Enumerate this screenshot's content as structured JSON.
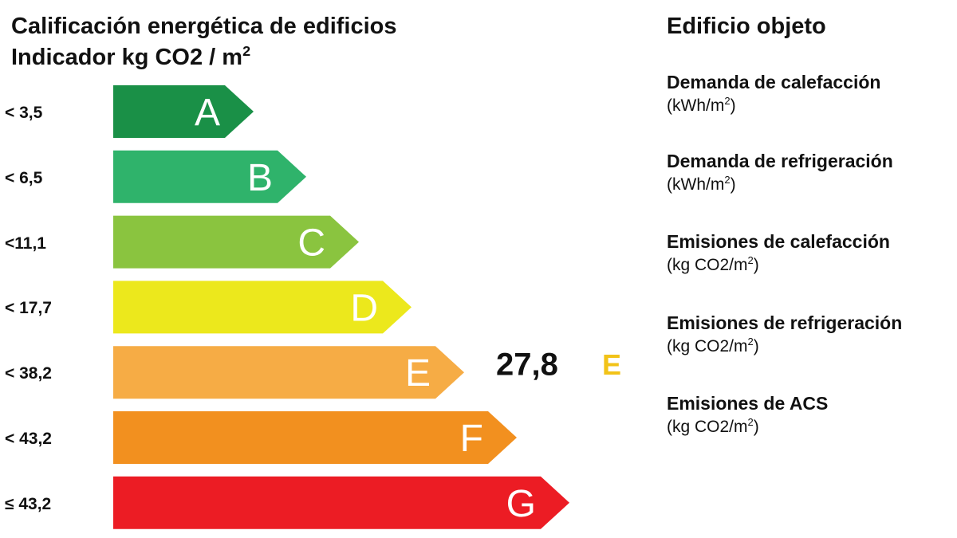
{
  "chart_title": "Calificación energética de edificios",
  "chart_subtitle": "Indicador kg CO2 / m",
  "chart_subtitle_sup": "2",
  "chart_data": {
    "type": "bar",
    "categories": [
      "A",
      "B",
      "C",
      "D",
      "E",
      "F",
      "G"
    ],
    "range_labels": [
      "< 3,5",
      "< 6,5",
      "<11,1",
      "< 17,7",
      "< 38,2",
      "< 43,2",
      "≤ 43,2"
    ],
    "colors": [
      "#1a9047",
      "#2fb36b",
      "#8ac43f",
      "#ece81c",
      "#f6ac45",
      "#f2901f",
      "#ec1c24"
    ],
    "value_label": "27,8",
    "value_class": "E",
    "value_class_color": "#f2c318",
    "title": "Calificación energética de edificios",
    "subtitle": "Indicador kg CO2 / m2"
  },
  "side_panel": {
    "title": "Edificio objeto",
    "items": [
      {
        "label": "Demanda de calefacción",
        "unit": "(kWh/m",
        "sup": "2",
        "close": ")"
      },
      {
        "label": "Demanda de refrigeración",
        "unit": "(kWh/m",
        "sup": "2",
        "close": ")"
      },
      {
        "label": "Emisiones de calefacción",
        "unit": "(kg CO2/m",
        "sup": "2",
        "close": ")"
      },
      {
        "label": "Emisiones de refrigeración",
        "unit": "(kg CO2/m",
        "sup": "2",
        "close": ")"
      },
      {
        "label": "Emisiones de ACS",
        "unit": "(kg CO2/m",
        "sup": "2",
        "close": ")"
      }
    ]
  }
}
